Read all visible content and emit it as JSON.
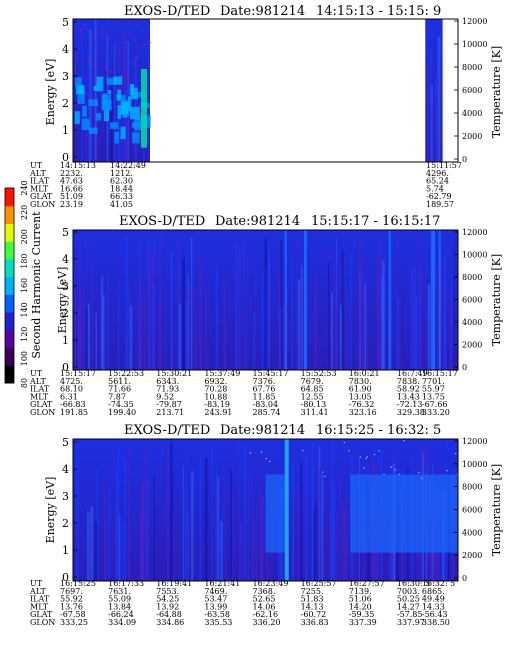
{
  "figure": {
    "colorbar_label": "Second Harmonic Current",
    "colorbar_ticks": [
      80,
      100,
      120,
      140,
      160,
      180,
      200,
      220,
      240
    ],
    "colorbar_colors": [
      "#000000",
      "#3a0058",
      "#5a00a0",
      "#2020d0",
      "#0060ff",
      "#00b0ff",
      "#00e0c0",
      "#40ff40",
      "#e0ff00",
      "#ff9000",
      "#ff1000"
    ]
  },
  "chart_data": [
    {
      "type": "heatmap",
      "title_instrument": "EXOS-D/TED",
      "title_date": "Date:981214",
      "title_time": "14:15:13 - 15:15: 9",
      "ylabel_left": "Energy [eV]",
      "ylabel_right": "Temperature [K]",
      "left_ticks": [
        "0",
        "1",
        "2",
        "3",
        "4",
        "5"
      ],
      "right_ticks": [
        "0",
        "2000",
        "4000",
        "6000",
        "8000",
        "10000",
        "12000"
      ],
      "ylim_left": [
        0,
        5.2
      ],
      "ylim_right": [
        0,
        12000
      ],
      "data_coverage": [
        [
          0,
          0.2
        ],
        [
          0.915,
          0.96
        ]
      ],
      "orbit_labels": [
        "UT",
        "ALT",
        "ILAT",
        "MLT",
        "GLAT",
        "GLON"
      ],
      "orbit_columns": [
        {
          "values": [
            "14:15:13",
            "2232.",
            "47.63",
            "16.66",
            "51.09",
            "23.19"
          ]
        },
        {
          "values": [
            "14:22:49",
            "1212.",
            "62.30",
            "18.44",
            "66.33",
            "41.05"
          ]
        },
        {
          "values": [
            "15:11:57",
            "4296.",
            "65.24",
            "5.74",
            "-62.79",
            "189.57"
          ]
        }
      ]
    },
    {
      "type": "heatmap",
      "title_instrument": "EXOS-D/TED",
      "title_date": "Date:981214",
      "title_time": "15:15:17 - 16:15:17",
      "ylabel_left": "Energy [eV]",
      "ylabel_right": "Temperature [K]",
      "left_ticks": [
        "0",
        "1",
        "2",
        "3",
        "4",
        "5"
      ],
      "right_ticks": [
        "0",
        "2000",
        "4000",
        "6000",
        "8000",
        "10000",
        "12000"
      ],
      "ylim_left": [
        0,
        5.2
      ],
      "ylim_right": [
        0,
        12000
      ],
      "data_coverage": [
        [
          0,
          1
        ]
      ],
      "orbit_labels": [
        "UT",
        "ALT",
        "ILAT",
        "MLT",
        "GLAT",
        "GLON"
      ],
      "orbit_columns": [
        {
          "values": [
            "15:15:17",
            "4725.",
            "68.10",
            "6.31",
            "-66.83",
            "191.85"
          ]
        },
        {
          "values": [
            "15:22:53",
            "5611.",
            "71.66",
            "7.87",
            "-74.35",
            "199.40"
          ]
        },
        {
          "values": [
            "15:30:21",
            "6343.",
            "71.93",
            "9.52",
            "-79.87",
            "213.71"
          ]
        },
        {
          "values": [
            "15:37:49",
            "6932.",
            "70.28",
            "10.88",
            "-83.19",
            "243.91"
          ]
        },
        {
          "values": [
            "15:45:17",
            "7376.",
            "67.76",
            "11.85",
            "-83.04",
            "285.74"
          ]
        },
        {
          "values": [
            "15:52:53",
            "7679.",
            "64.85",
            "12.55",
            "-80.13",
            "311.41"
          ]
        },
        {
          "values": [
            "16:0:21",
            "7830.",
            "61.90",
            "13.05",
            "-76.32",
            "323.16"
          ]
        },
        {
          "values": [
            "16:7:49",
            "7838.",
            "58.92",
            "13.43",
            "-72.13",
            "329.38"
          ]
        },
        {
          "values": [
            "16:15:17",
            "7701.",
            "55.97",
            "13.75",
            "-67.66",
            "333.20"
          ]
        }
      ]
    },
    {
      "type": "heatmap",
      "title_instrument": "EXOS-D/TED",
      "title_date": "Date:981214",
      "title_time": "16:15:25 - 16:32: 5",
      "ylabel_left": "Energy [eV]",
      "ylabel_right": "Temperature [K]",
      "left_ticks": [
        "0",
        "1",
        "2",
        "3",
        "4",
        "5"
      ],
      "right_ticks": [
        "0",
        "2000",
        "4000",
        "6000",
        "8000",
        "10000",
        "12000"
      ],
      "ylim_left": [
        0,
        5.2
      ],
      "ylim_right": [
        0,
        12000
      ],
      "data_coverage": [
        [
          0,
          1
        ]
      ],
      "orbit_labels": [
        "UT",
        "ALT",
        "ILAT",
        "MLT",
        "GLAT",
        "GLON"
      ],
      "orbit_columns": [
        {
          "values": [
            "16:15:25",
            "7697.",
            "55.92",
            "13.76",
            "-67.58",
            "333.25"
          ]
        },
        {
          "values": [
            "16:17:33",
            "7631.",
            "55.09",
            "13.84",
            "-66.24",
            "334.09"
          ]
        },
        {
          "values": [
            "16:19:41",
            "7553.",
            "54.25",
            "13.92",
            "-64.88",
            "334.86"
          ]
        },
        {
          "values": [
            "16:21:41",
            "7469.",
            "53.47",
            "13.99",
            "-63.58",
            "335.53"
          ]
        },
        {
          "values": [
            "16:23:49",
            "7368.",
            "52.65",
            "14.06",
            "-62.16",
            "336.20"
          ]
        },
        {
          "values": [
            "16:25:57",
            "7255.",
            "51.83",
            "14.13",
            "-60.72",
            "336.83"
          ]
        },
        {
          "values": [
            "16:27:57",
            "7139.",
            "51.06",
            "14.20",
            "-59.35",
            "337.39"
          ]
        },
        {
          "values": [
            "16:30: 5",
            "7003.",
            "50.25",
            "14.27",
            "-57.85",
            "337.97"
          ]
        },
        {
          "values": [
            "16:32: 5",
            "6865.",
            "49.49",
            "14.33",
            "-56.43",
            "338.50"
          ]
        }
      ]
    }
  ]
}
